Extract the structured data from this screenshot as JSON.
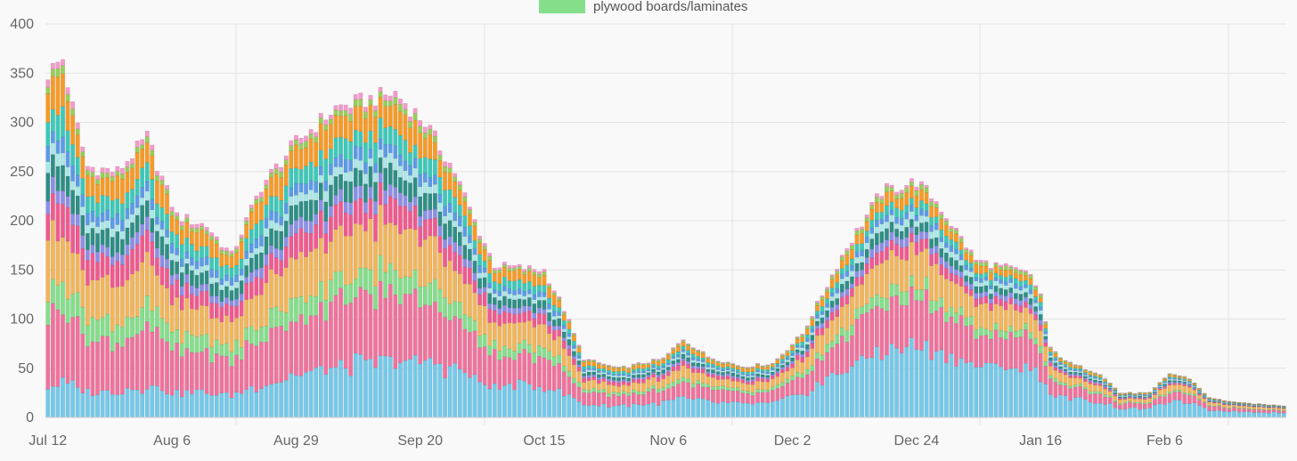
{
  "chart_data": {
    "type": "bar",
    "stacked": true,
    "title": "",
    "xlabel": "",
    "ylabel": "",
    "ylim": [
      0,
      400
    ],
    "y_ticks": [
      0,
      50,
      100,
      150,
      200,
      250,
      300,
      350,
      400
    ],
    "x_tick_labels": [
      "Jul 12",
      "Aug 6",
      "Aug 29",
      "Sep 20",
      "Oct 15",
      "Nov 6",
      "Dec 2",
      "Dec 24",
      "Jan 16",
      "Feb 6"
    ],
    "x_tick_bar_index": [
      0,
      25,
      50,
      75,
      100,
      125,
      150,
      175,
      200,
      225
    ],
    "grid": true,
    "legend_position": "top",
    "legend_visible": [
      {
        "name": "plywood boards/laminates",
        "color": "#84de8a"
      }
    ],
    "bar_count": 250,
    "totals_keypoints": [
      [
        0,
        350
      ],
      [
        3,
        365
      ],
      [
        5,
        315
      ],
      [
        8,
        255
      ],
      [
        14,
        250
      ],
      [
        20,
        285
      ],
      [
        24,
        230
      ],
      [
        26,
        205
      ],
      [
        32,
        195
      ],
      [
        37,
        165
      ],
      [
        43,
        235
      ],
      [
        50,
        280
      ],
      [
        58,
        315
      ],
      [
        70,
        330
      ],
      [
        76,
        300
      ],
      [
        82,
        250
      ],
      [
        86,
        200
      ],
      [
        90,
        155
      ],
      [
        100,
        150
      ],
      [
        104,
        110
      ],
      [
        108,
        60
      ],
      [
        115,
        50
      ],
      [
        124,
        60
      ],
      [
        128,
        80
      ],
      [
        133,
        62
      ],
      [
        140,
        52
      ],
      [
        146,
        55
      ],
      [
        152,
        85
      ],
      [
        160,
        165
      ],
      [
        168,
        230
      ],
      [
        175,
        240
      ],
      [
        179,
        220
      ],
      [
        187,
        160
      ],
      [
        195,
        150
      ],
      [
        198,
        145
      ],
      [
        200,
        125
      ],
      [
        202,
        70
      ],
      [
        206,
        55
      ],
      [
        212,
        45
      ],
      [
        216,
        25
      ],
      [
        222,
        25
      ],
      [
        226,
        45
      ],
      [
        230,
        40
      ],
      [
        234,
        20
      ],
      [
        240,
        15
      ],
      [
        249,
        12
      ]
    ],
    "series": [
      {
        "color": "#74c9ea",
        "fraction": 0.09,
        "end_fraction": 0.4
      },
      {
        "color": "#f0729d",
        "fraction": 0.21,
        "end_fraction": 0.2
      },
      {
        "color": "#84de8a",
        "fraction": 0.08,
        "end_fraction": 0.04
      },
      {
        "color": "#f2b55a",
        "fraction": 0.15,
        "end_fraction": 0.14
      },
      {
        "color": "#f05a8e",
        "fraction": 0.09,
        "end_fraction": 0.03
      },
      {
        "color": "#8d8ee6",
        "fraction": 0.04,
        "end_fraction": 0.03
      },
      {
        "color": "#2d8f86",
        "fraction": 0.07,
        "end_fraction": 0.03
      },
      {
        "color": "#a9e8e8",
        "fraction": 0.03,
        "end_fraction": 0.03
      },
      {
        "color": "#5b9be8",
        "fraction": 0.04,
        "end_fraction": 0.02
      },
      {
        "color": "#3cc9b9",
        "fraction": 0.07,
        "end_fraction": 0.02
      },
      {
        "color": "#f79a26",
        "fraction": 0.09,
        "end_fraction": 0.03
      },
      {
        "color": "#9acd5a",
        "fraction": 0.02,
        "end_fraction": 0.02
      },
      {
        "color": "#f49aca",
        "fraction": 0.02,
        "end_fraction": 0.01
      }
    ]
  }
}
